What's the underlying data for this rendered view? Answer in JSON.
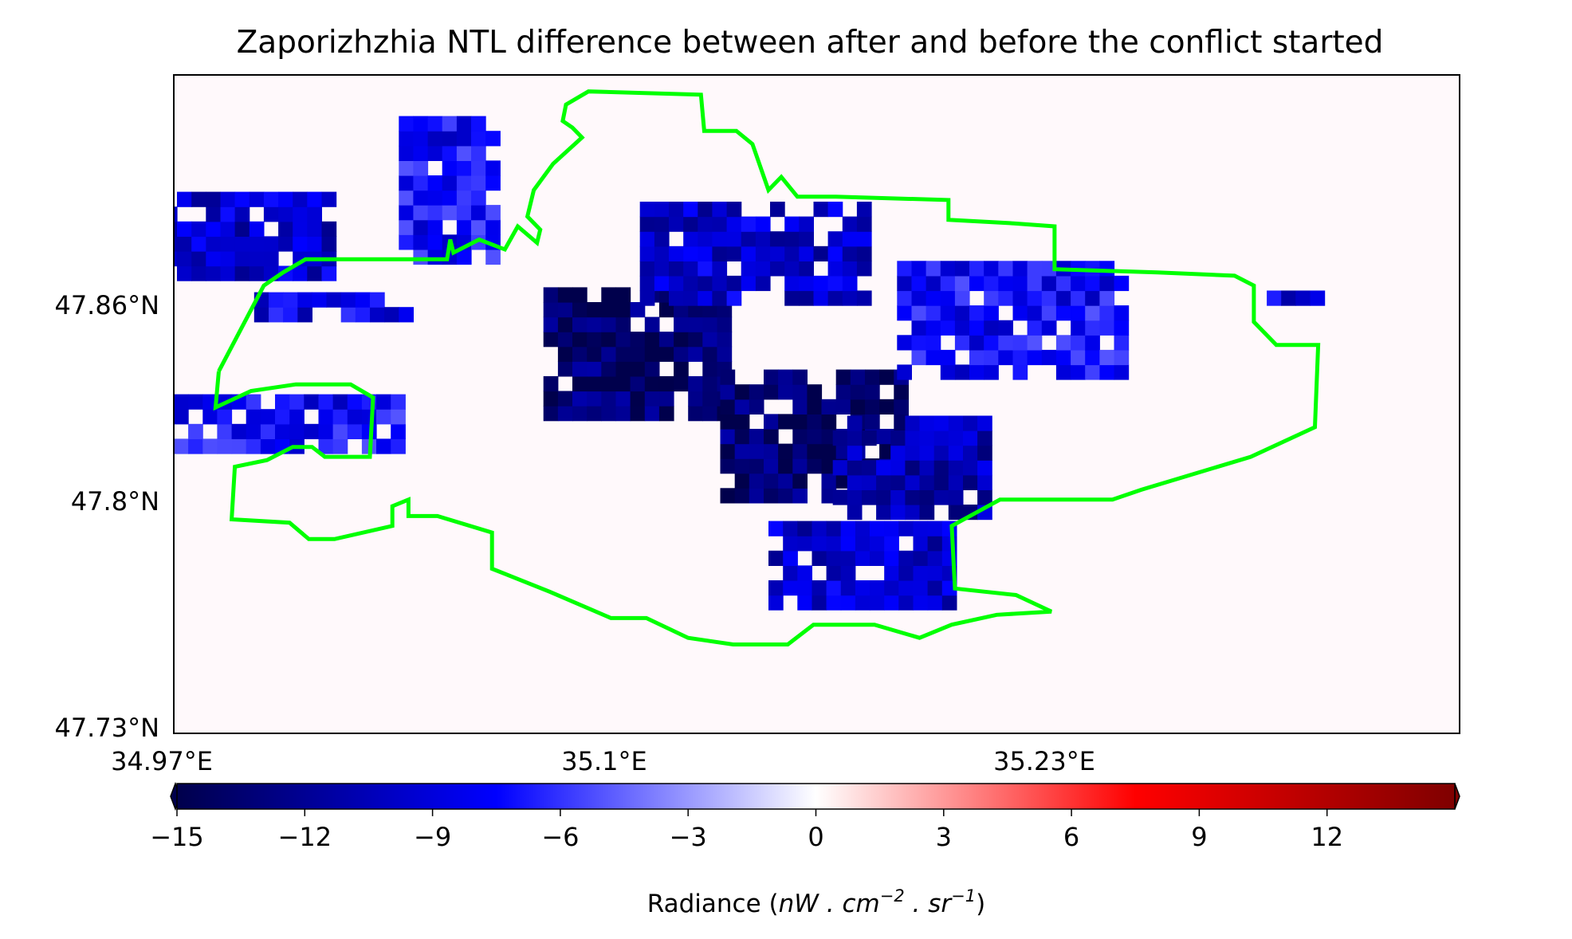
{
  "chart_data": {
    "type": "heatmap",
    "title": "Zaporizhzhia NTL difference between after and before the conflict started",
    "x_ticks": [
      "34.97°E",
      "35.1°E",
      "35.23°E"
    ],
    "y_ticks": [
      "47.86°N",
      "47.8°N",
      "47.73°N"
    ],
    "x_tick_values": [
      34.97,
      35.1,
      35.23
    ],
    "y_tick_values": [
      47.86,
      47.8,
      47.73
    ],
    "xlim": [
      34.97,
      35.37
    ],
    "ylim": [
      47.73,
      47.93
    ],
    "colormap": "seismic",
    "colorbar": {
      "vmin": -15,
      "vmax": 15,
      "extend": "both",
      "ticks": [
        "−15",
        "−12",
        "−9",
        "−6",
        "−3",
        "0",
        "3",
        "6",
        "9",
        "12"
      ],
      "tick_values": [
        -15,
        -12,
        -9,
        -6,
        -3,
        0,
        3,
        6,
        9,
        12
      ],
      "label": "Radiance",
      "label_units": "nW . cm",
      "label_units_exp1": "−2",
      "label_units_mid": " . sr",
      "label_units_exp2": "−1",
      "label_close": ")",
      "label_open": " ("
    },
    "background_value": 0,
    "cells": [
      {
        "lon": 34.99,
        "lat": 47.88,
        "w": 0.065,
        "h": 0.025,
        "value": -10
      },
      {
        "lon": 35.02,
        "lat": 47.86,
        "w": 0.05,
        "h": 0.01,
        "value": -9
      },
      {
        "lon": 35.055,
        "lat": 47.895,
        "w": 0.03,
        "h": 0.045,
        "value": -8
      },
      {
        "lon": 35.115,
        "lat": 47.845,
        "w": 0.06,
        "h": 0.04,
        "value": -14
      },
      {
        "lon": 35.17,
        "lat": 47.82,
        "w": 0.06,
        "h": 0.04,
        "value": -14
      },
      {
        "lon": 35.2,
        "lat": 47.81,
        "w": 0.05,
        "h": 0.03,
        "value": -11
      },
      {
        "lon": 35.15,
        "lat": 47.875,
        "w": 0.07,
        "h": 0.03,
        "value": -10
      },
      {
        "lon": 35.23,
        "lat": 47.855,
        "w": 0.07,
        "h": 0.035,
        "value": -8
      },
      {
        "lon": 35.005,
        "lat": 47.825,
        "w": 0.07,
        "h": 0.02,
        "value": -8
      },
      {
        "lon": 35.185,
        "lat": 47.78,
        "w": 0.06,
        "h": 0.025,
        "value": -10
      },
      {
        "lon": 35.32,
        "lat": 47.863,
        "w": 0.02,
        "h": 0.006,
        "value": -9
      }
    ],
    "boundary_color": "#00ff00",
    "boundary": [
      [
        34.984,
        47.84
      ],
      [
        34.983,
        47.829
      ],
      [
        34.994,
        47.834
      ],
      [
        35.008,
        47.836
      ],
      [
        35.025,
        47.836
      ],
      [
        35.032,
        47.832
      ],
      [
        35.031,
        47.814
      ],
      [
        35.017,
        47.814
      ],
      [
        35.013,
        47.817
      ],
      [
        35.007,
        47.817
      ],
      [
        34.999,
        47.813
      ],
      [
        34.989,
        47.811
      ],
      [
        34.988,
        47.795
      ],
      [
        35.006,
        47.794
      ],
      [
        35.012,
        47.789
      ],
      [
        35.02,
        47.789
      ],
      [
        35.038,
        47.793
      ],
      [
        35.038,
        47.799
      ],
      [
        35.043,
        47.801
      ],
      [
        35.043,
        47.796
      ],
      [
        35.052,
        47.796
      ],
      [
        35.069,
        47.791
      ],
      [
        35.069,
        47.78
      ],
      [
        35.087,
        47.773
      ],
      [
        35.106,
        47.765
      ],
      [
        35.117,
        47.765
      ],
      [
        35.13,
        47.759
      ],
      [
        35.144,
        47.757
      ],
      [
        35.161,
        47.757
      ],
      [
        35.169,
        47.763
      ],
      [
        35.188,
        47.763
      ],
      [
        35.202,
        47.759
      ],
      [
        35.212,
        47.763
      ],
      [
        35.226,
        47.766
      ],
      [
        35.243,
        47.767
      ],
      [
        35.232,
        47.772
      ],
      [
        35.213,
        47.774
      ],
      [
        35.212,
        47.793
      ],
      [
        35.227,
        47.801
      ],
      [
        35.262,
        47.801
      ],
      [
        35.271,
        47.804
      ],
      [
        35.305,
        47.814
      ],
      [
        35.325,
        47.823
      ],
      [
        35.326,
        47.848
      ],
      [
        35.313,
        47.848
      ],
      [
        35.306,
        47.855
      ],
      [
        35.306,
        47.866
      ],
      [
        35.3,
        47.869
      ],
      [
        35.276,
        47.87
      ],
      [
        35.244,
        47.871
      ],
      [
        35.244,
        47.884
      ],
      [
        35.23,
        47.885
      ],
      [
        35.211,
        47.886
      ],
      [
        35.211,
        47.892
      ],
      [
        35.176,
        47.893
      ],
      [
        35.164,
        47.893
      ],
      [
        35.159,
        47.899
      ],
      [
        35.155,
        47.895
      ],
      [
        35.15,
        47.909
      ],
      [
        35.145,
        47.913
      ],
      [
        35.135,
        47.913
      ],
      [
        35.134,
        47.924
      ],
      [
        35.099,
        47.925
      ],
      [
        35.092,
        47.921
      ],
      [
        35.091,
        47.916
      ],
      [
        35.094,
        47.914
      ],
      [
        35.097,
        47.911
      ],
      [
        35.088,
        47.903
      ],
      [
        35.082,
        47.895
      ],
      [
        35.08,
        47.887
      ],
      [
        35.084,
        47.883
      ],
      [
        35.083,
        47.879
      ],
      [
        35.077,
        47.884
      ],
      [
        35.073,
        47.877
      ],
      [
        35.065,
        47.88
      ],
      [
        35.057,
        47.876
      ],
      [
        35.056,
        47.88
      ],
      [
        35.055,
        47.874
      ],
      [
        35.031,
        47.874
      ],
      [
        35.011,
        47.874
      ],
      [
        35.004,
        47.87
      ],
      [
        34.998,
        47.866
      ],
      [
        34.984,
        47.84
      ]
    ]
  }
}
